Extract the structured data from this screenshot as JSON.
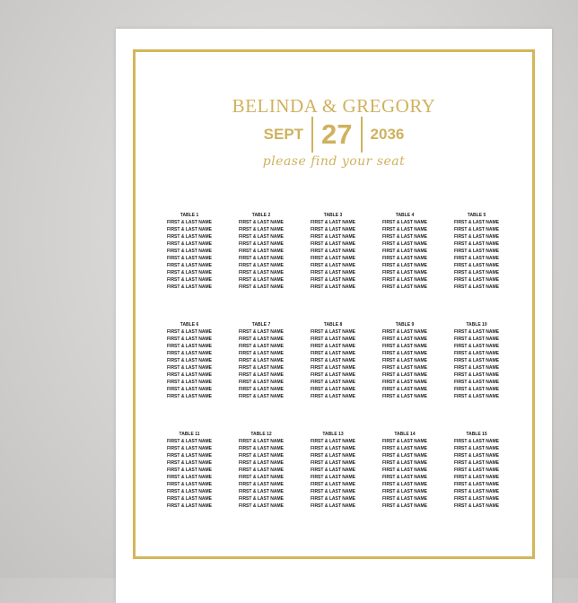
{
  "header": {
    "couple": "BELINDA & GREGORY",
    "month": "SEPT",
    "day": "27",
    "year": "2036",
    "tagline": "please find your seat"
  },
  "colors": {
    "gold": "#cfb25e",
    "border": "#d4b65a"
  },
  "tables": [
    {
      "label": "TABLE 1",
      "guests": [
        "FIRST & LAST NAME",
        "FIRST & LAST NAME",
        "FIRST & LAST NAME",
        "FIRST & LAST NAME",
        "FIRST & LAST NAME",
        "FIRST & LAST NAME",
        "FIRST & LAST NAME",
        "FIRST & LAST NAME",
        "FIRST & LAST NAME",
        "FIRST & LAST NAME"
      ]
    },
    {
      "label": "TABLE 2",
      "guests": [
        "FIRST & LAST NAME",
        "FIRST & LAST NAME",
        "FIRST & LAST NAME",
        "FIRST & LAST NAME",
        "FIRST & LAST NAME",
        "FIRST & LAST NAME",
        "FIRST & LAST NAME",
        "FIRST & LAST NAME",
        "FIRST & LAST NAME",
        "FIRST & LAST NAME"
      ]
    },
    {
      "label": "TABLE 3",
      "guests": [
        "FIRST & LAST NAME",
        "FIRST & LAST NAME",
        "FIRST & LAST NAME",
        "FIRST & LAST NAME",
        "FIRST & LAST NAME",
        "FIRST & LAST NAME",
        "FIRST & LAST NAME",
        "FIRST & LAST NAME",
        "FIRST & LAST NAME",
        "FIRST & LAST NAME"
      ]
    },
    {
      "label": "TABLE 4",
      "guests": [
        "FIRST & LAST NAME",
        "FIRST & LAST NAME",
        "FIRST & LAST NAME",
        "FIRST & LAST NAME",
        "FIRST & LAST NAME",
        "FIRST & LAST NAME",
        "FIRST & LAST NAME",
        "FIRST & LAST NAME",
        "FIRST & LAST NAME",
        "FIRST & LAST NAME"
      ]
    },
    {
      "label": "TABLE 5",
      "guests": [
        "FIRST & LAST NAME",
        "FIRST & LAST NAME",
        "FIRST & LAST NAME",
        "FIRST & LAST NAME",
        "FIRST & LAST NAME",
        "FIRST & LAST NAME",
        "FIRST & LAST NAME",
        "FIRST & LAST NAME",
        "FIRST & LAST NAME",
        "FIRST & LAST NAME"
      ]
    },
    {
      "label": "TABLE 6",
      "guests": [
        "FIRST & LAST NAME",
        "FIRST & LAST NAME",
        "FIRST & LAST NAME",
        "FIRST & LAST NAME",
        "FIRST & LAST NAME",
        "FIRST & LAST NAME",
        "FIRST & LAST NAME",
        "FIRST & LAST NAME",
        "FIRST & LAST NAME",
        "FIRST & LAST NAME"
      ]
    },
    {
      "label": "TABLE 7",
      "guests": [
        "FIRST & LAST NAME",
        "FIRST & LAST NAME",
        "FIRST & LAST NAME",
        "FIRST & LAST NAME",
        "FIRST & LAST NAME",
        "FIRST & LAST NAME",
        "FIRST & LAST NAME",
        "FIRST & LAST NAME",
        "FIRST & LAST NAME",
        "FIRST & LAST NAME"
      ]
    },
    {
      "label": "TABLE 8",
      "guests": [
        "FIRST & LAST NAME",
        "FIRST & LAST NAME",
        "FIRST & LAST NAME",
        "FIRST & LAST NAME",
        "FIRST & LAST NAME",
        "FIRST & LAST NAME",
        "FIRST & LAST NAME",
        "FIRST & LAST NAME",
        "FIRST & LAST NAME",
        "FIRST & LAST NAME"
      ]
    },
    {
      "label": "TABLE 9",
      "guests": [
        "FIRST & LAST NAME",
        "FIRST & LAST NAME",
        "FIRST & LAST NAME",
        "FIRST & LAST NAME",
        "FIRST & LAST NAME",
        "FIRST & LAST NAME",
        "FIRST & LAST NAME",
        "FIRST & LAST NAME",
        "FIRST & LAST NAME",
        "FIRST & LAST NAME"
      ]
    },
    {
      "label": "TABLE 10",
      "guests": [
        "FIRST & LAST NAME",
        "FIRST & LAST NAME",
        "FIRST & LAST NAME",
        "FIRST & LAST NAME",
        "FIRST & LAST NAME",
        "FIRST & LAST NAME",
        "FIRST & LAST NAME",
        "FIRST & LAST NAME",
        "FIRST & LAST NAME",
        "FIRST & LAST NAME"
      ]
    },
    {
      "label": "TABLE 11",
      "guests": [
        "FIRST & LAST NAME",
        "FIRST & LAST NAME",
        "FIRST & LAST NAME",
        "FIRST & LAST NAME",
        "FIRST & LAST NAME",
        "FIRST & LAST NAME",
        "FIRST & LAST NAME",
        "FIRST & LAST NAME",
        "FIRST & LAST NAME",
        "FIRST & LAST NAME"
      ]
    },
    {
      "label": "TABLE 12",
      "guests": [
        "FIRST & LAST NAME",
        "FIRST & LAST NAME",
        "FIRST & LAST NAME",
        "FIRST & LAST NAME",
        "FIRST & LAST NAME",
        "FIRST & LAST NAME",
        "FIRST & LAST NAME",
        "FIRST & LAST NAME",
        "FIRST & LAST NAME",
        "FIRST & LAST NAME"
      ]
    },
    {
      "label": "TABLE 13",
      "guests": [
        "FIRST & LAST NAME",
        "FIRST & LAST NAME",
        "FIRST & LAST NAME",
        "FIRST & LAST NAME",
        "FIRST & LAST NAME",
        "FIRST & LAST NAME",
        "FIRST & LAST NAME",
        "FIRST & LAST NAME",
        "FIRST & LAST NAME",
        "FIRST & LAST NAME"
      ]
    },
    {
      "label": "TABLE 14",
      "guests": [
        "FIRST & LAST NAME",
        "FIRST & LAST NAME",
        "FIRST & LAST NAME",
        "FIRST & LAST NAME",
        "FIRST & LAST NAME",
        "FIRST & LAST NAME",
        "FIRST & LAST NAME",
        "FIRST & LAST NAME",
        "FIRST & LAST NAME",
        "FIRST & LAST NAME"
      ]
    },
    {
      "label": "TABLE 15",
      "guests": [
        "FIRST & LAST NAME",
        "FIRST & LAST NAME",
        "FIRST & LAST NAME",
        "FIRST & LAST NAME",
        "FIRST & LAST NAME",
        "FIRST & LAST NAME",
        "FIRST & LAST NAME",
        "FIRST & LAST NAME",
        "FIRST & LAST NAME",
        "FIRST & LAST NAME"
      ]
    }
  ]
}
